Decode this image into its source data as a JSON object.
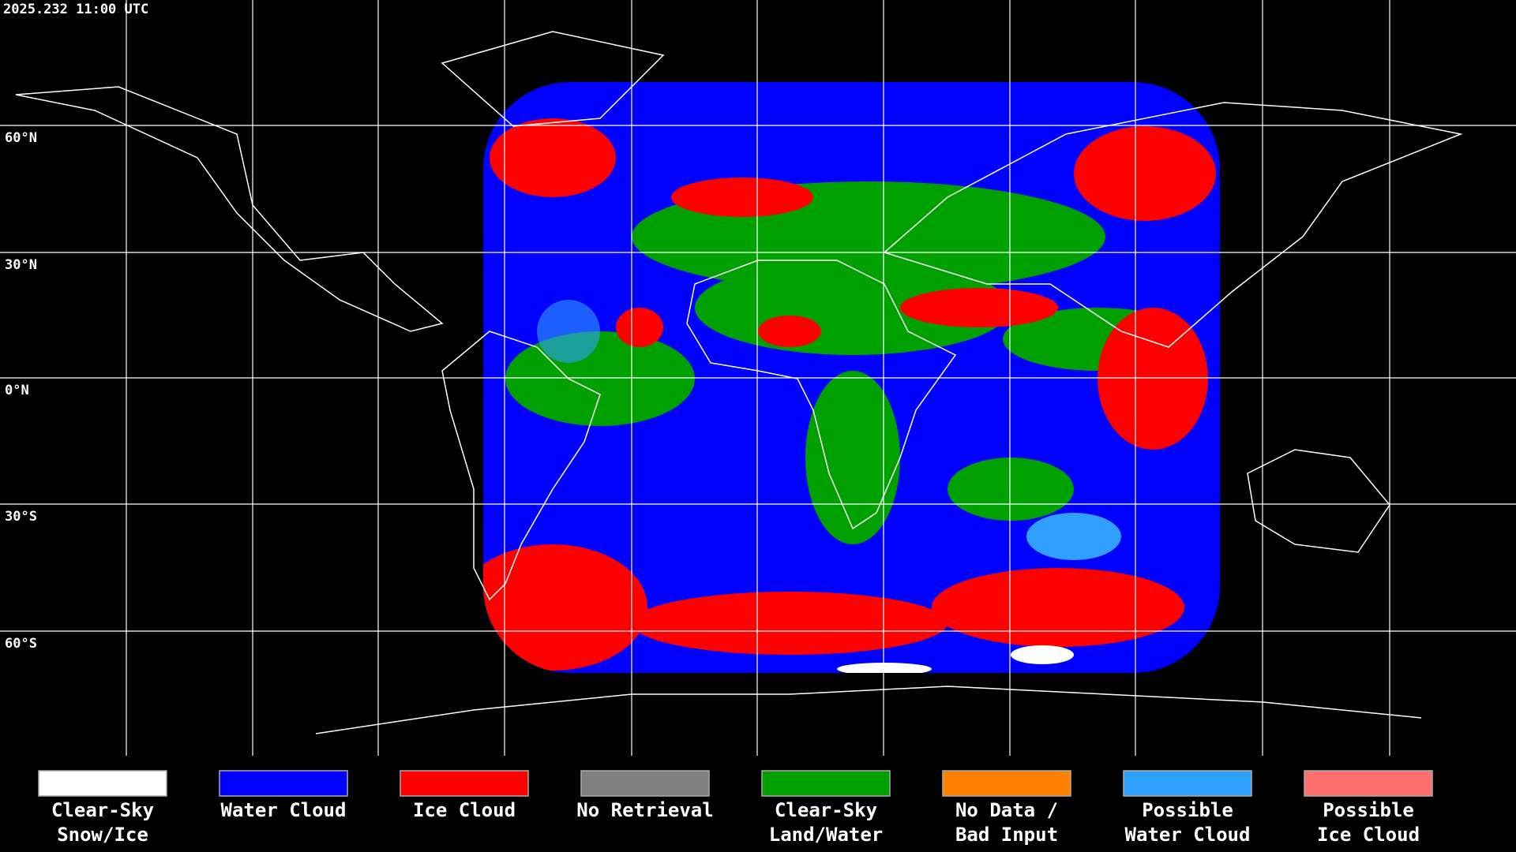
{
  "timestamp": "2025.232 11:00 UTC",
  "latitude_labels": [
    "60°N",
    "30°N",
    "0°N",
    "30°S",
    "60°S"
  ],
  "legend": [
    {
      "lines": [
        "Clear-Sky",
        "Snow/Ice"
      ],
      "color": "#ffffff"
    },
    {
      "lines": [
        "Water Cloud"
      ],
      "color": "#0000ff"
    },
    {
      "lines": [
        "Ice Cloud"
      ],
      "color": "#ff0000"
    },
    {
      "lines": [
        "No Retrieval"
      ],
      "color": "#808080"
    },
    {
      "lines": [
        "Clear-Sky",
        "Land/Water"
      ],
      "color": "#00a000"
    },
    {
      "lines": [
        "No Data /",
        "Bad Input"
      ],
      "color": "#ff8000"
    },
    {
      "lines": [
        "Possible",
        "Water Cloud"
      ],
      "color": "#30a0ff"
    },
    {
      "lines": [
        "Possible",
        "Ice Cloud"
      ],
      "color": "#ff7070"
    }
  ]
}
